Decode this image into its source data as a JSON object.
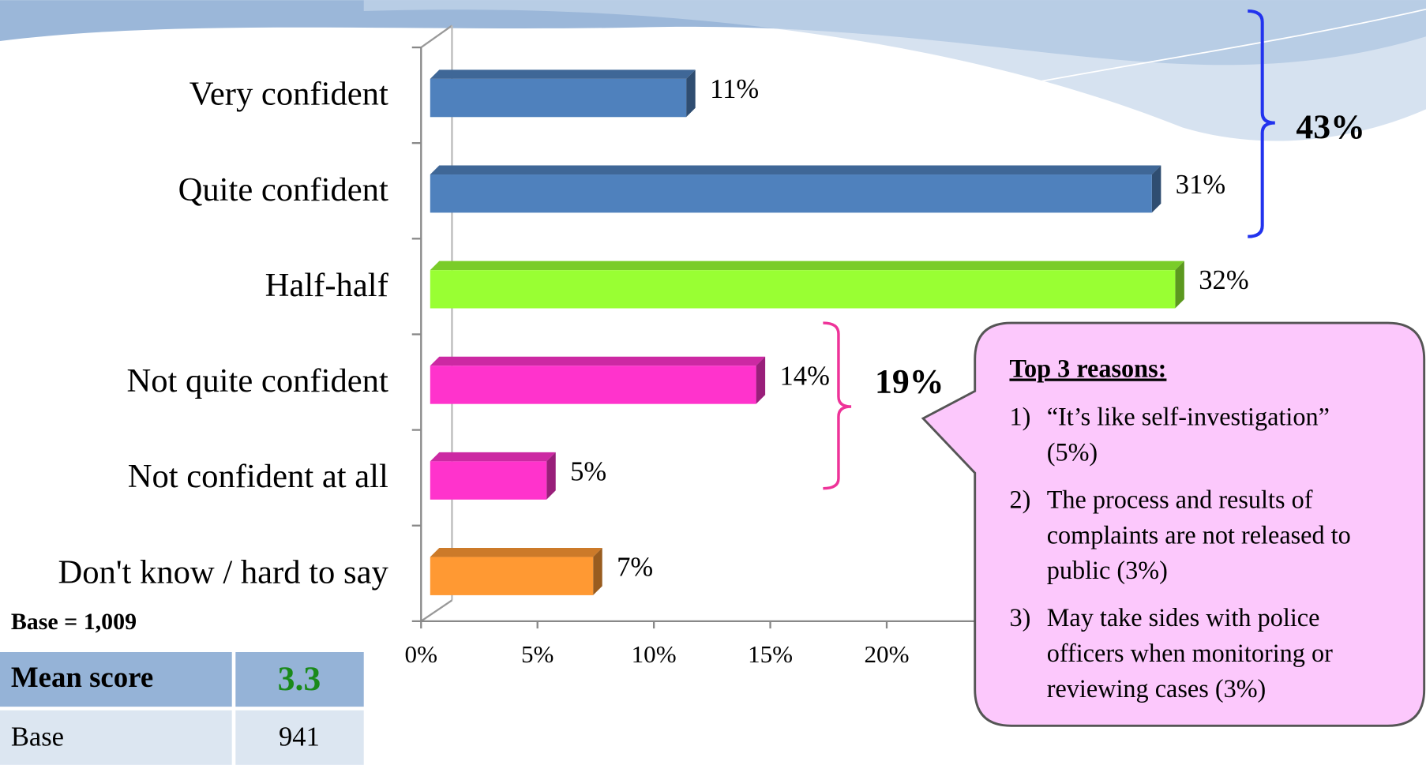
{
  "chart_data": {
    "type": "bar",
    "categories": [
      "Very confident",
      "Quite confident",
      "Half-half",
      "Not quite confident",
      "Not confident at all",
      "Don't know / hard to say"
    ],
    "values": [
      11,
      31,
      32,
      14,
      5,
      7
    ],
    "value_labels": [
      "11%",
      "31%",
      "32%",
      "14%",
      "5%",
      "7%"
    ],
    "colors": [
      "#4f81bd",
      "#4f81bd",
      "#99ff33",
      "#ff33cc",
      "#ff33cc",
      "#ff9933"
    ],
    "xlim": [
      0,
      35
    ],
    "xticks": [
      {
        "value": 0,
        "label": "0%"
      },
      {
        "value": 5,
        "label": "5%"
      },
      {
        "value": 10,
        "label": "10%"
      },
      {
        "value": 15,
        "label": "15%"
      },
      {
        "value": 20,
        "label": "20%"
      }
    ],
    "annotations": {
      "top_two": "43%",
      "bottom_two": "19%",
      "base": "Base = 1,009"
    },
    "callout": {
      "title": "Top 3 reasons:",
      "items": [
        {
          "number": "1)",
          "lines": [
            "“It’s like self-investigation”",
            "(5%)"
          ]
        },
        {
          "number": "2)",
          "lines": [
            "The process and results of",
            "complaints are not released to",
            "public (3%)"
          ]
        },
        {
          "number": "3)",
          "lines": [
            "May take sides with police",
            "officers when monitoring or",
            "reviewing cases (3%)"
          ]
        }
      ]
    },
    "table": {
      "header": [
        "Mean score",
        3.3
      ],
      "rows": [
        [
          "Base",
          941
        ]
      ]
    }
  }
}
